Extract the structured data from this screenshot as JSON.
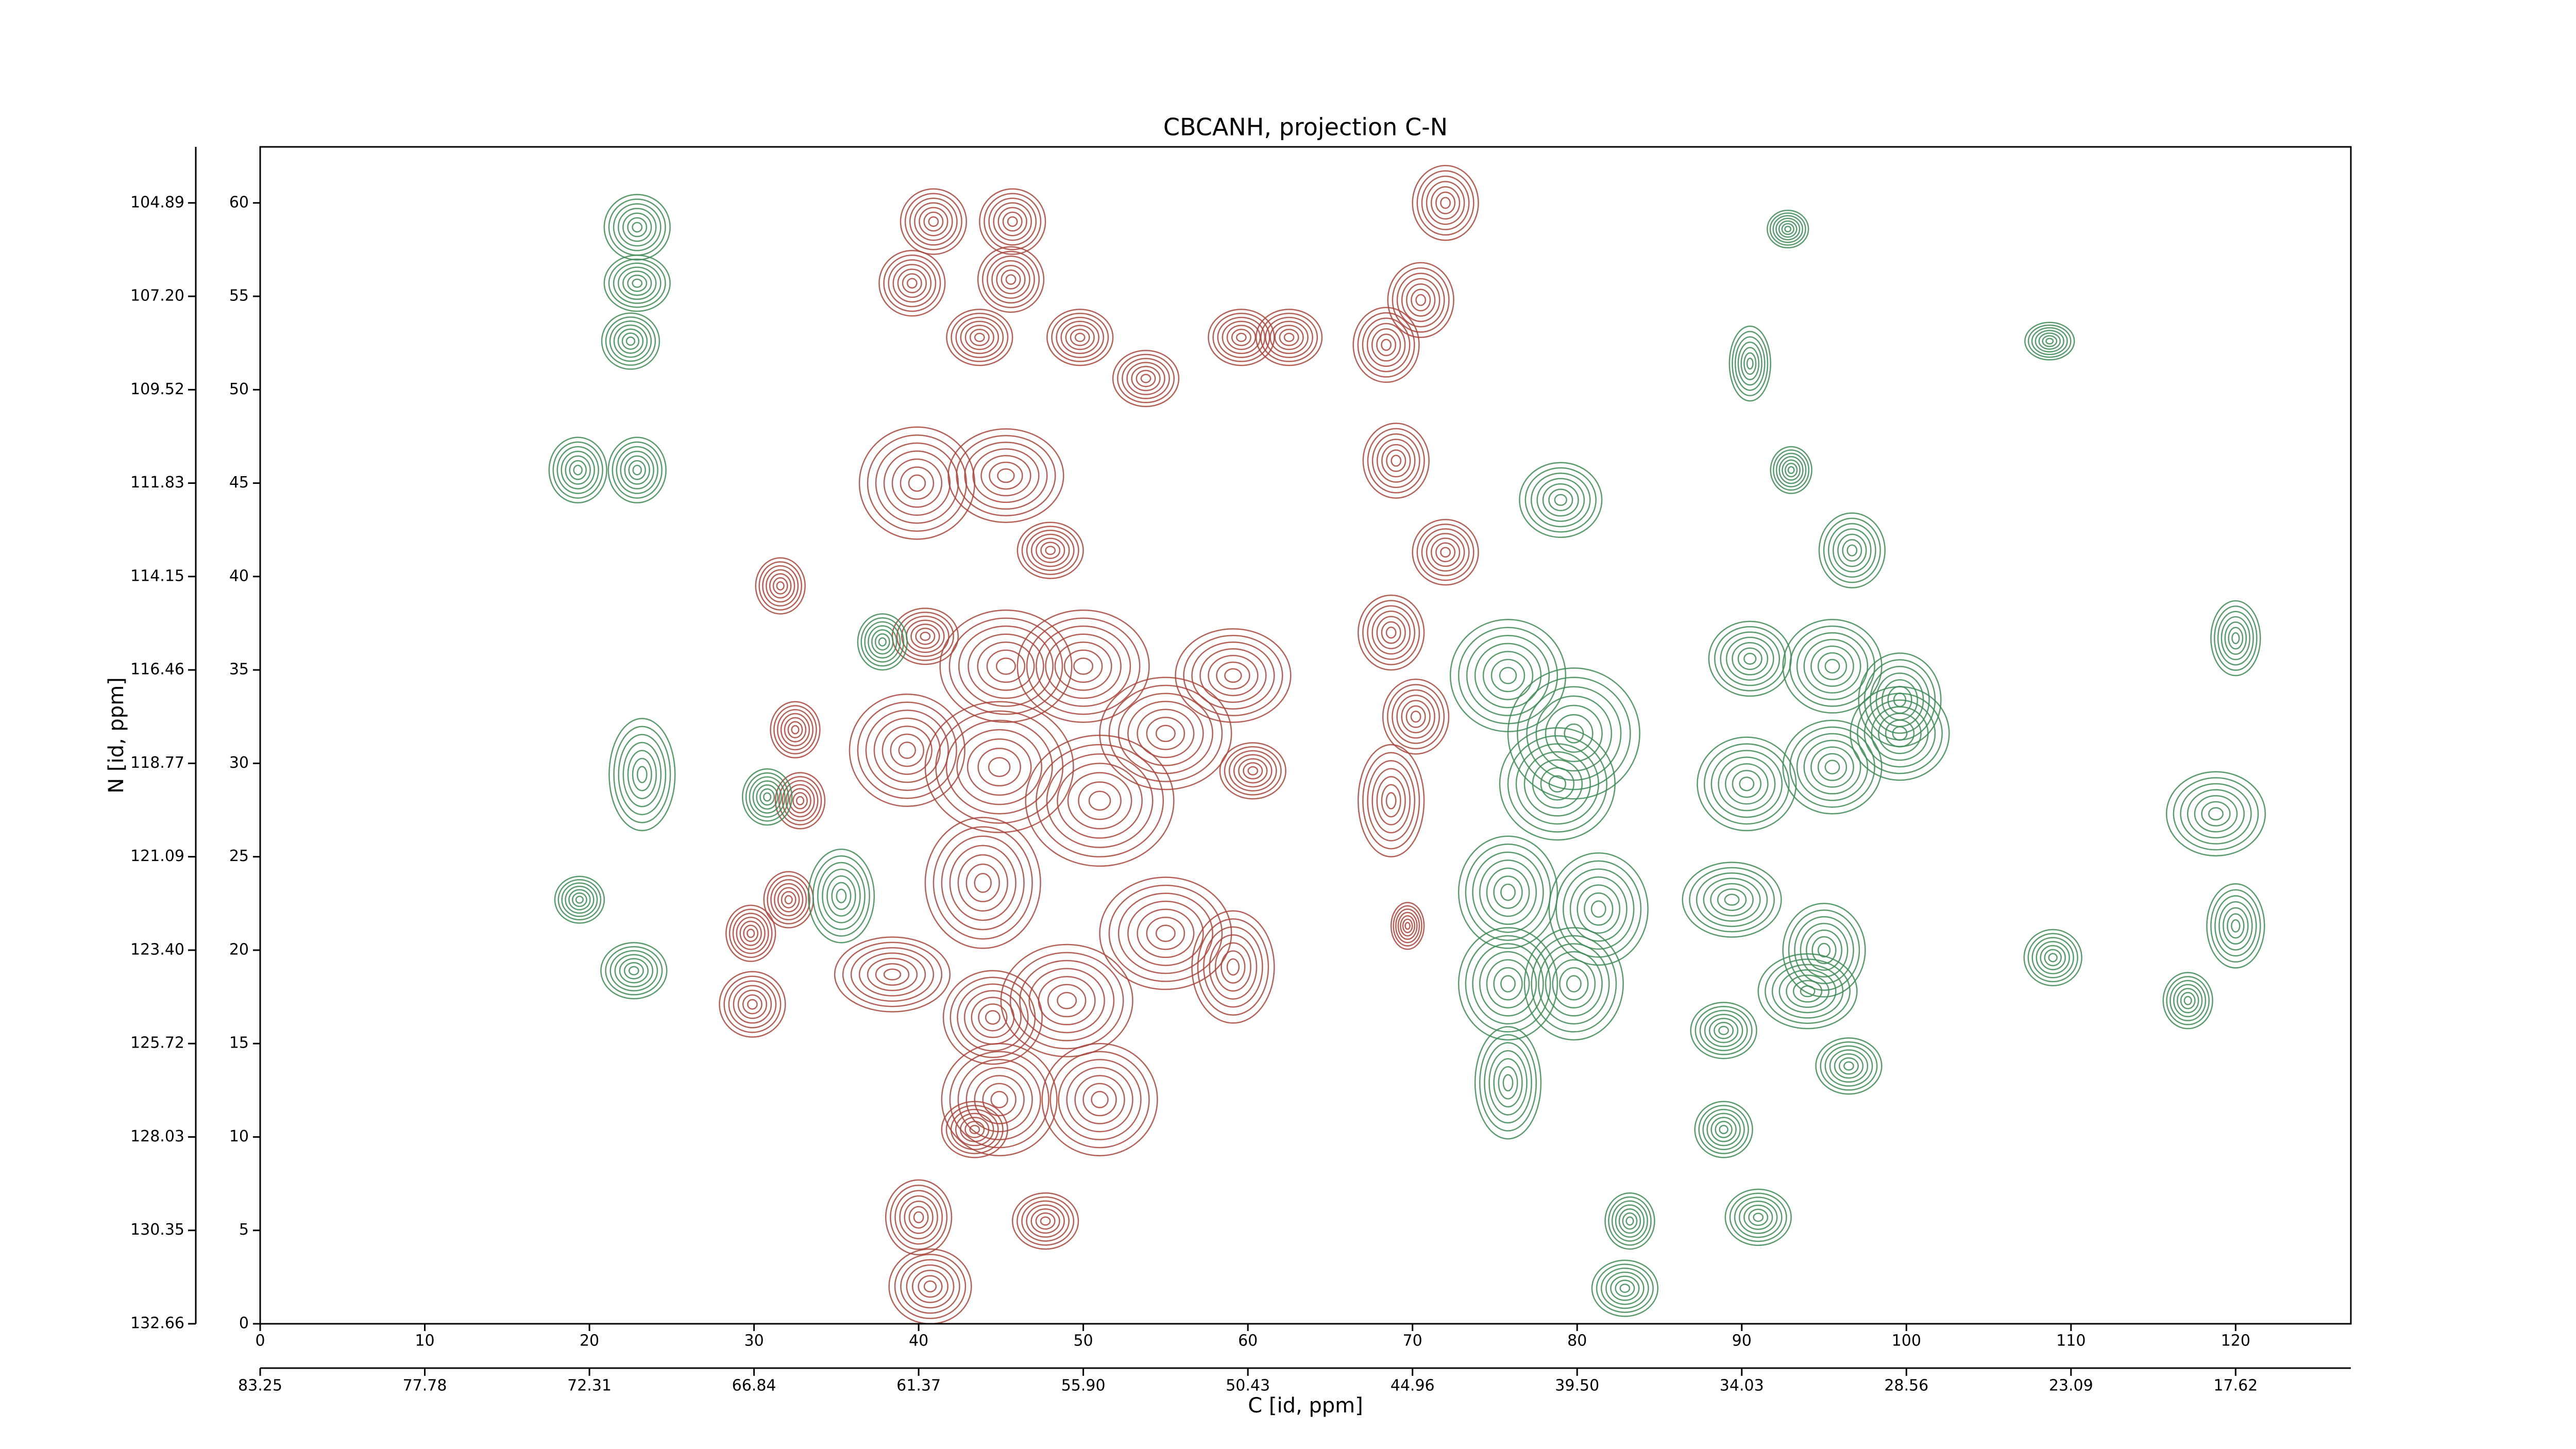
{
  "chart_data": {
    "type": "contour",
    "title": "CBCANH, projection C-N",
    "xlabel": "C [id, ppm]",
    "ylabel": "N [id, ppm]",
    "xlim": [
      0,
      127
    ],
    "ylim": [
      0,
      63
    ],
    "xticks": [
      0,
      10,
      20,
      30,
      40,
      50,
      60,
      70,
      80,
      90,
      100,
      110,
      120
    ],
    "yticks": [
      0,
      5,
      10,
      15,
      20,
      25,
      30,
      35,
      40,
      45,
      50,
      55,
      60
    ],
    "ppm_xticks": [
      {
        "value": 0,
        "label": "83.25"
      },
      {
        "value": 10,
        "label": "77.78"
      },
      {
        "value": 20,
        "label": "72.31"
      },
      {
        "value": 30,
        "label": "66.84"
      },
      {
        "value": 40,
        "label": "61.37"
      },
      {
        "value": 50,
        "label": "55.90"
      },
      {
        "value": 60,
        "label": "50.43"
      },
      {
        "value": 70,
        "label": "44.96"
      },
      {
        "value": 80,
        "label": "39.50"
      },
      {
        "value": 90,
        "label": "34.03"
      },
      {
        "value": 100,
        "label": "28.56"
      },
      {
        "value": 110,
        "label": "23.09"
      },
      {
        "value": 120,
        "label": "17.62"
      }
    ],
    "ppm_yticks": [
      {
        "value": 0,
        "label": "132.66"
      },
      {
        "value": 5,
        "label": "130.35"
      },
      {
        "value": 10,
        "label": "128.03"
      },
      {
        "value": 15,
        "label": "125.72"
      },
      {
        "value": 20,
        "label": "123.40"
      },
      {
        "value": 25,
        "label": "121.09"
      },
      {
        "value": 30,
        "label": "118.77"
      },
      {
        "value": 35,
        "label": "116.46"
      },
      {
        "value": 40,
        "label": "114.15"
      },
      {
        "value": 45,
        "label": "111.83"
      },
      {
        "value": 50,
        "label": "109.52"
      },
      {
        "value": 55,
        "label": "107.20"
      },
      {
        "value": 60,
        "label": "104.89"
      }
    ],
    "series": [
      {
        "color": "#a8443a",
        "x": [
          40.9,
          45.7,
          39.6,
          45.6,
          43.7,
          49.8,
          53.8,
          59.6,
          62.5,
          72.0,
          70.5,
          68.4,
          69.0,
          72.0,
          39.9,
          45.3,
          48.0,
          31.6,
          40.4,
          45.3,
          50.0,
          59.1,
          68.7,
          70.2,
          68.7,
          39.3,
          44.9,
          51.0,
          60.3,
          55.0,
          32.5,
          32.8,
          32.1,
          29.8,
          29.9,
          38.4,
          43.9,
          44.5,
          49.0,
          55.0,
          59.1,
          44.9,
          51.0,
          43.4,
          40.0,
          47.7,
          40.7,
          69.7
        ],
        "y": [
          59.0,
          59.0,
          55.7,
          55.9,
          52.8,
          52.8,
          50.6,
          52.8,
          52.8,
          60.0,
          54.8,
          52.4,
          46.2,
          41.3,
          45.0,
          45.4,
          41.4,
          39.5,
          36.8,
          35.2,
          35.2,
          34.7,
          37.0,
          32.5,
          28.0,
          30.7,
          29.8,
          28.0,
          29.6,
          31.6,
          31.8,
          28.0,
          22.7,
          20.9,
          17.1,
          18.7,
          23.6,
          16.4,
          17.3,
          20.9,
          19.1,
          12.0,
          12.0,
          10.4,
          5.7,
          5.5,
          2.0,
          21.3
        ],
        "width": [
          4,
          4,
          4,
          4,
          4,
          4,
          4,
          4,
          4,
          4,
          4,
          4,
          4,
          4,
          7,
          7,
          4,
          3,
          4,
          8,
          8,
          7,
          4,
          4,
          4,
          7,
          9,
          9,
          4,
          8,
          3,
          3,
          3,
          3,
          4,
          7,
          7,
          6,
          8,
          8,
          5,
          7,
          7,
          4,
          4,
          4,
          5,
          2
        ],
        "height": [
          3.5,
          3.5,
          3.5,
          3.5,
          3,
          3,
          3,
          3,
          3,
          4,
          4,
          4,
          4,
          3.5,
          6,
          5,
          3,
          3,
          3,
          6,
          6,
          5,
          4,
          4,
          6,
          6,
          7,
          7,
          3,
          6,
          3,
          3,
          3,
          3,
          3.5,
          4,
          7,
          5,
          6,
          6,
          6,
          6,
          6,
          3,
          4,
          3,
          4,
          2.5
        ]
      },
      {
        "color": "#3d8a55",
        "x": [
          22.9,
          22.9,
          22.5,
          19.3,
          22.9,
          79.0,
          96.7,
          92.8,
          90.5,
          108.7,
          93.0,
          75.8,
          79.8,
          78.8,
          90.5,
          95.5,
          99.6,
          90.3,
          95.5,
          99.6,
          23.2,
          30.8,
          35.3,
          37.8,
          19.4,
          22.7,
          75.8,
          81.3,
          75.8,
          79.8,
          75.8,
          89.4,
          95.0,
          94.0,
          96.5,
          88.9,
          88.9,
          91.0,
          83.2,
          82.9,
          118.8,
          120.0,
          120.0,
          108.9,
          117.1
        ],
        "y": [
          58.7,
          55.7,
          52.6,
          45.7,
          45.7,
          44.1,
          41.4,
          58.6,
          51.4,
          52.6,
          45.7,
          34.7,
          31.6,
          28.9,
          35.6,
          35.2,
          33.4,
          28.9,
          29.8,
          31.6,
          29.4,
          28.2,
          22.9,
          36.5,
          22.7,
          18.9,
          23.1,
          22.2,
          18.2,
          18.2,
          12.9,
          22.7,
          20.0,
          17.8,
          13.8,
          15.7,
          10.4,
          5.7,
          5.5,
          1.9,
          27.3,
          21.3,
          36.7,
          19.6,
          17.3
        ],
        "width": [
          4,
          4,
          3.5,
          3.5,
          3.5,
          5,
          4,
          2.5,
          2.5,
          3,
          2.5,
          7,
          8,
          7,
          5,
          6,
          5,
          6,
          6,
          6,
          4,
          3,
          4,
          3,
          3,
          4,
          6,
          6,
          6,
          6,
          4,
          6,
          5,
          6,
          4,
          4,
          3.5,
          4,
          3,
          4,
          6,
          3.5,
          3,
          3.5,
          3
        ],
        "height": [
          3.5,
          3,
          3,
          3.5,
          3.5,
          4,
          4,
          2,
          4,
          2,
          2.5,
          6,
          7,
          6,
          4,
          5,
          5,
          5,
          5,
          5,
          6,
          3,
          5,
          3,
          2.5,
          3,
          6,
          6,
          6,
          6,
          6,
          4,
          5,
          4,
          3,
          3,
          3,
          3,
          3,
          3,
          4.5,
          4.5,
          4,
          3,
          3
        ]
      }
    ]
  }
}
